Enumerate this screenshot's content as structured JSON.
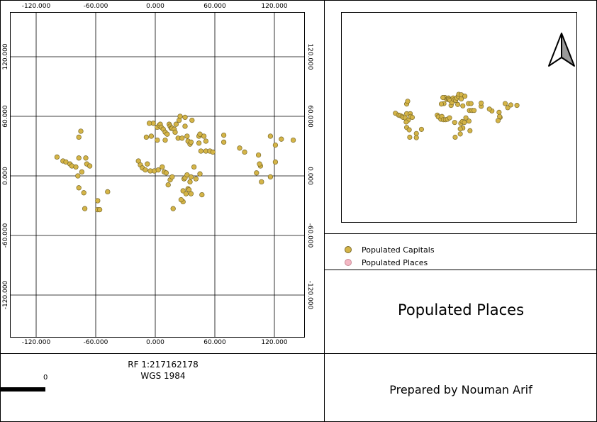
{
  "map": {
    "x_ticks": [
      "-120.000",
      "-60.000",
      "0.000",
      "60.000",
      "120.000"
    ],
    "y_ticks": [
      "120.000",
      "60.000",
      "0.000",
      "-60.000",
      "-120.000"
    ],
    "point_color": "#d4b447",
    "point_stroke": "#7a6a2a",
    "capitals": [
      [
        -99,
        19
      ],
      [
        -93,
        15
      ],
      [
        -90,
        14
      ],
      [
        -86,
        12
      ],
      [
        -84,
        10
      ],
      [
        -80,
        9
      ],
      [
        -77,
        18
      ],
      [
        -74,
        4
      ],
      [
        -70,
        18
      ],
      [
        -69,
        12
      ],
      [
        -66,
        10
      ],
      [
        -78,
        0
      ],
      [
        -77,
        -12
      ],
      [
        -72,
        -17
      ],
      [
        -71,
        -33
      ],
      [
        -58,
        -25
      ],
      [
        -58,
        -34
      ],
      [
        -56,
        -34
      ],
      [
        -48,
        -16
      ],
      [
        -77,
        39
      ],
      [
        -75,
        45
      ],
      [
        -17,
        15
      ],
      [
        -15,
        11
      ],
      [
        -13,
        8
      ],
      [
        -10,
        6
      ],
      [
        -8,
        12
      ],
      [
        -5,
        5
      ],
      [
        -4,
        40
      ],
      [
        -1,
        5
      ],
      [
        -2,
        53
      ],
      [
        -9,
        39
      ],
      [
        -6,
        53
      ],
      [
        2,
        49
      ],
      [
        2,
        36
      ],
      [
        4,
        51
      ],
      [
        5,
        52
      ],
      [
        6,
        49
      ],
      [
        3,
        6
      ],
      [
        7,
        9
      ],
      [
        8,
        47
      ],
      [
        10,
        36
      ],
      [
        9,
        4
      ],
      [
        11,
        3
      ],
      [
        10,
        44
      ],
      [
        12,
        42
      ],
      [
        14,
        52
      ],
      [
        15,
        50
      ],
      [
        16,
        48
      ],
      [
        17,
        48
      ],
      [
        19,
        47
      ],
      [
        20,
        44
      ],
      [
        21,
        52
      ],
      [
        23,
        38
      ],
      [
        24,
        56
      ],
      [
        25,
        60
      ],
      [
        27,
        38
      ],
      [
        30,
        50
      ],
      [
        32,
        40
      ],
      [
        30,
        59
      ],
      [
        33,
        35
      ],
      [
        35,
        32
      ],
      [
        36,
        34
      ],
      [
        37,
        56
      ],
      [
        44,
        33
      ],
      [
        44,
        40
      ],
      [
        45,
        42
      ],
      [
        49,
        40
      ],
      [
        46,
        25
      ],
      [
        51,
        25
      ],
      [
        55,
        25
      ],
      [
        51,
        35
      ],
      [
        58,
        24
      ],
      [
        69,
        34
      ],
      [
        69,
        41
      ],
      [
        90,
        24
      ],
      [
        85,
        28
      ],
      [
        104,
        21
      ],
      [
        106,
        10
      ],
      [
        102,
        3
      ],
      [
        105,
        12
      ],
      [
        116,
        40
      ],
      [
        121,
        31
      ],
      [
        121,
        14
      ],
      [
        127,
        37
      ],
      [
        139,
        36
      ],
      [
        116,
        -1
      ],
      [
        107,
        -6
      ],
      [
        13,
        -9
      ],
      [
        15,
        -4
      ],
      [
        17,
        -1
      ],
      [
        18,
        -33
      ],
      [
        28,
        -26
      ],
      [
        29,
        -3
      ],
      [
        30,
        -2
      ],
      [
        32,
        1
      ],
      [
        33,
        -13
      ],
      [
        34,
        -14
      ],
      [
        35,
        -6
      ],
      [
        36,
        -1
      ],
      [
        39,
        9
      ],
      [
        41,
        -3
      ],
      [
        45,
        2
      ],
      [
        47,
        -19
      ],
      [
        28,
        -15
      ],
      [
        31,
        -18
      ],
      [
        26,
        -24
      ],
      [
        36,
        -18
      ]
    ]
  },
  "inset": {
    "points": [
      [
        -77,
        39
      ],
      [
        -75,
        45
      ],
      [
        -99,
        19
      ],
      [
        -93,
        15
      ],
      [
        -90,
        14
      ],
      [
        -86,
        12
      ],
      [
        -84,
        10
      ],
      [
        -80,
        9
      ],
      [
        -77,
        18
      ],
      [
        -74,
        4
      ],
      [
        -70,
        18
      ],
      [
        -69,
        12
      ],
      [
        -66,
        10
      ],
      [
        -78,
        0
      ],
      [
        -77,
        -12
      ],
      [
        -72,
        -17
      ],
      [
        -71,
        -33
      ],
      [
        -58,
        -25
      ],
      [
        -58,
        -34
      ],
      [
        -48,
        -16
      ],
      [
        -17,
        15
      ],
      [
        -15,
        11
      ],
      [
        -10,
        6
      ],
      [
        -8,
        12
      ],
      [
        -5,
        5
      ],
      [
        -1,
        5
      ],
      [
        3,
        6
      ],
      [
        7,
        9
      ],
      [
        10,
        36
      ],
      [
        -4,
        40
      ],
      [
        -9,
        39
      ],
      [
        -2,
        53
      ],
      [
        -6,
        53
      ],
      [
        2,
        49
      ],
      [
        4,
        51
      ],
      [
        5,
        52
      ],
      [
        6,
        49
      ],
      [
        8,
        47
      ],
      [
        12,
        42
      ],
      [
        14,
        52
      ],
      [
        16,
        48
      ],
      [
        19,
        47
      ],
      [
        21,
        52
      ],
      [
        23,
        38
      ],
      [
        24,
        56
      ],
      [
        25,
        60
      ],
      [
        30,
        50
      ],
      [
        30,
        59
      ],
      [
        33,
        35
      ],
      [
        37,
        56
      ],
      [
        44,
        40
      ],
      [
        49,
        40
      ],
      [
        46,
        25
      ],
      [
        51,
        25
      ],
      [
        55,
        25
      ],
      [
        69,
        34
      ],
      [
        69,
        41
      ],
      [
        17,
        -1
      ],
      [
        18,
        -33
      ],
      [
        28,
        -26
      ],
      [
        29,
        -3
      ],
      [
        32,
        1
      ],
      [
        33,
        -13
      ],
      [
        36,
        -1
      ],
      [
        39,
        9
      ],
      [
        45,
        2
      ],
      [
        47,
        -19
      ],
      [
        28,
        -15
      ],
      [
        90,
        24
      ],
      [
        85,
        28
      ],
      [
        104,
        21
      ],
      [
        106,
        10
      ],
      [
        102,
        3
      ],
      [
        105,
        12
      ],
      [
        116,
        40
      ],
      [
        121,
        31
      ],
      [
        127,
        37
      ],
      [
        139,
        36
      ]
    ]
  },
  "north_arrow": {
    "symbol": "north-arrow"
  },
  "legend": {
    "items": [
      {
        "label": "Populated Capitals",
        "color": "#d4b447"
      },
      {
        "label": "Populated Places",
        "color": "#f4b8c4"
      }
    ]
  },
  "title": "Populated Places",
  "scale": {
    "rf": "RF 1:217162178",
    "datum": "WGS 1984",
    "bar_label": "0"
  },
  "credit": "Prepared by Nouman Arif"
}
